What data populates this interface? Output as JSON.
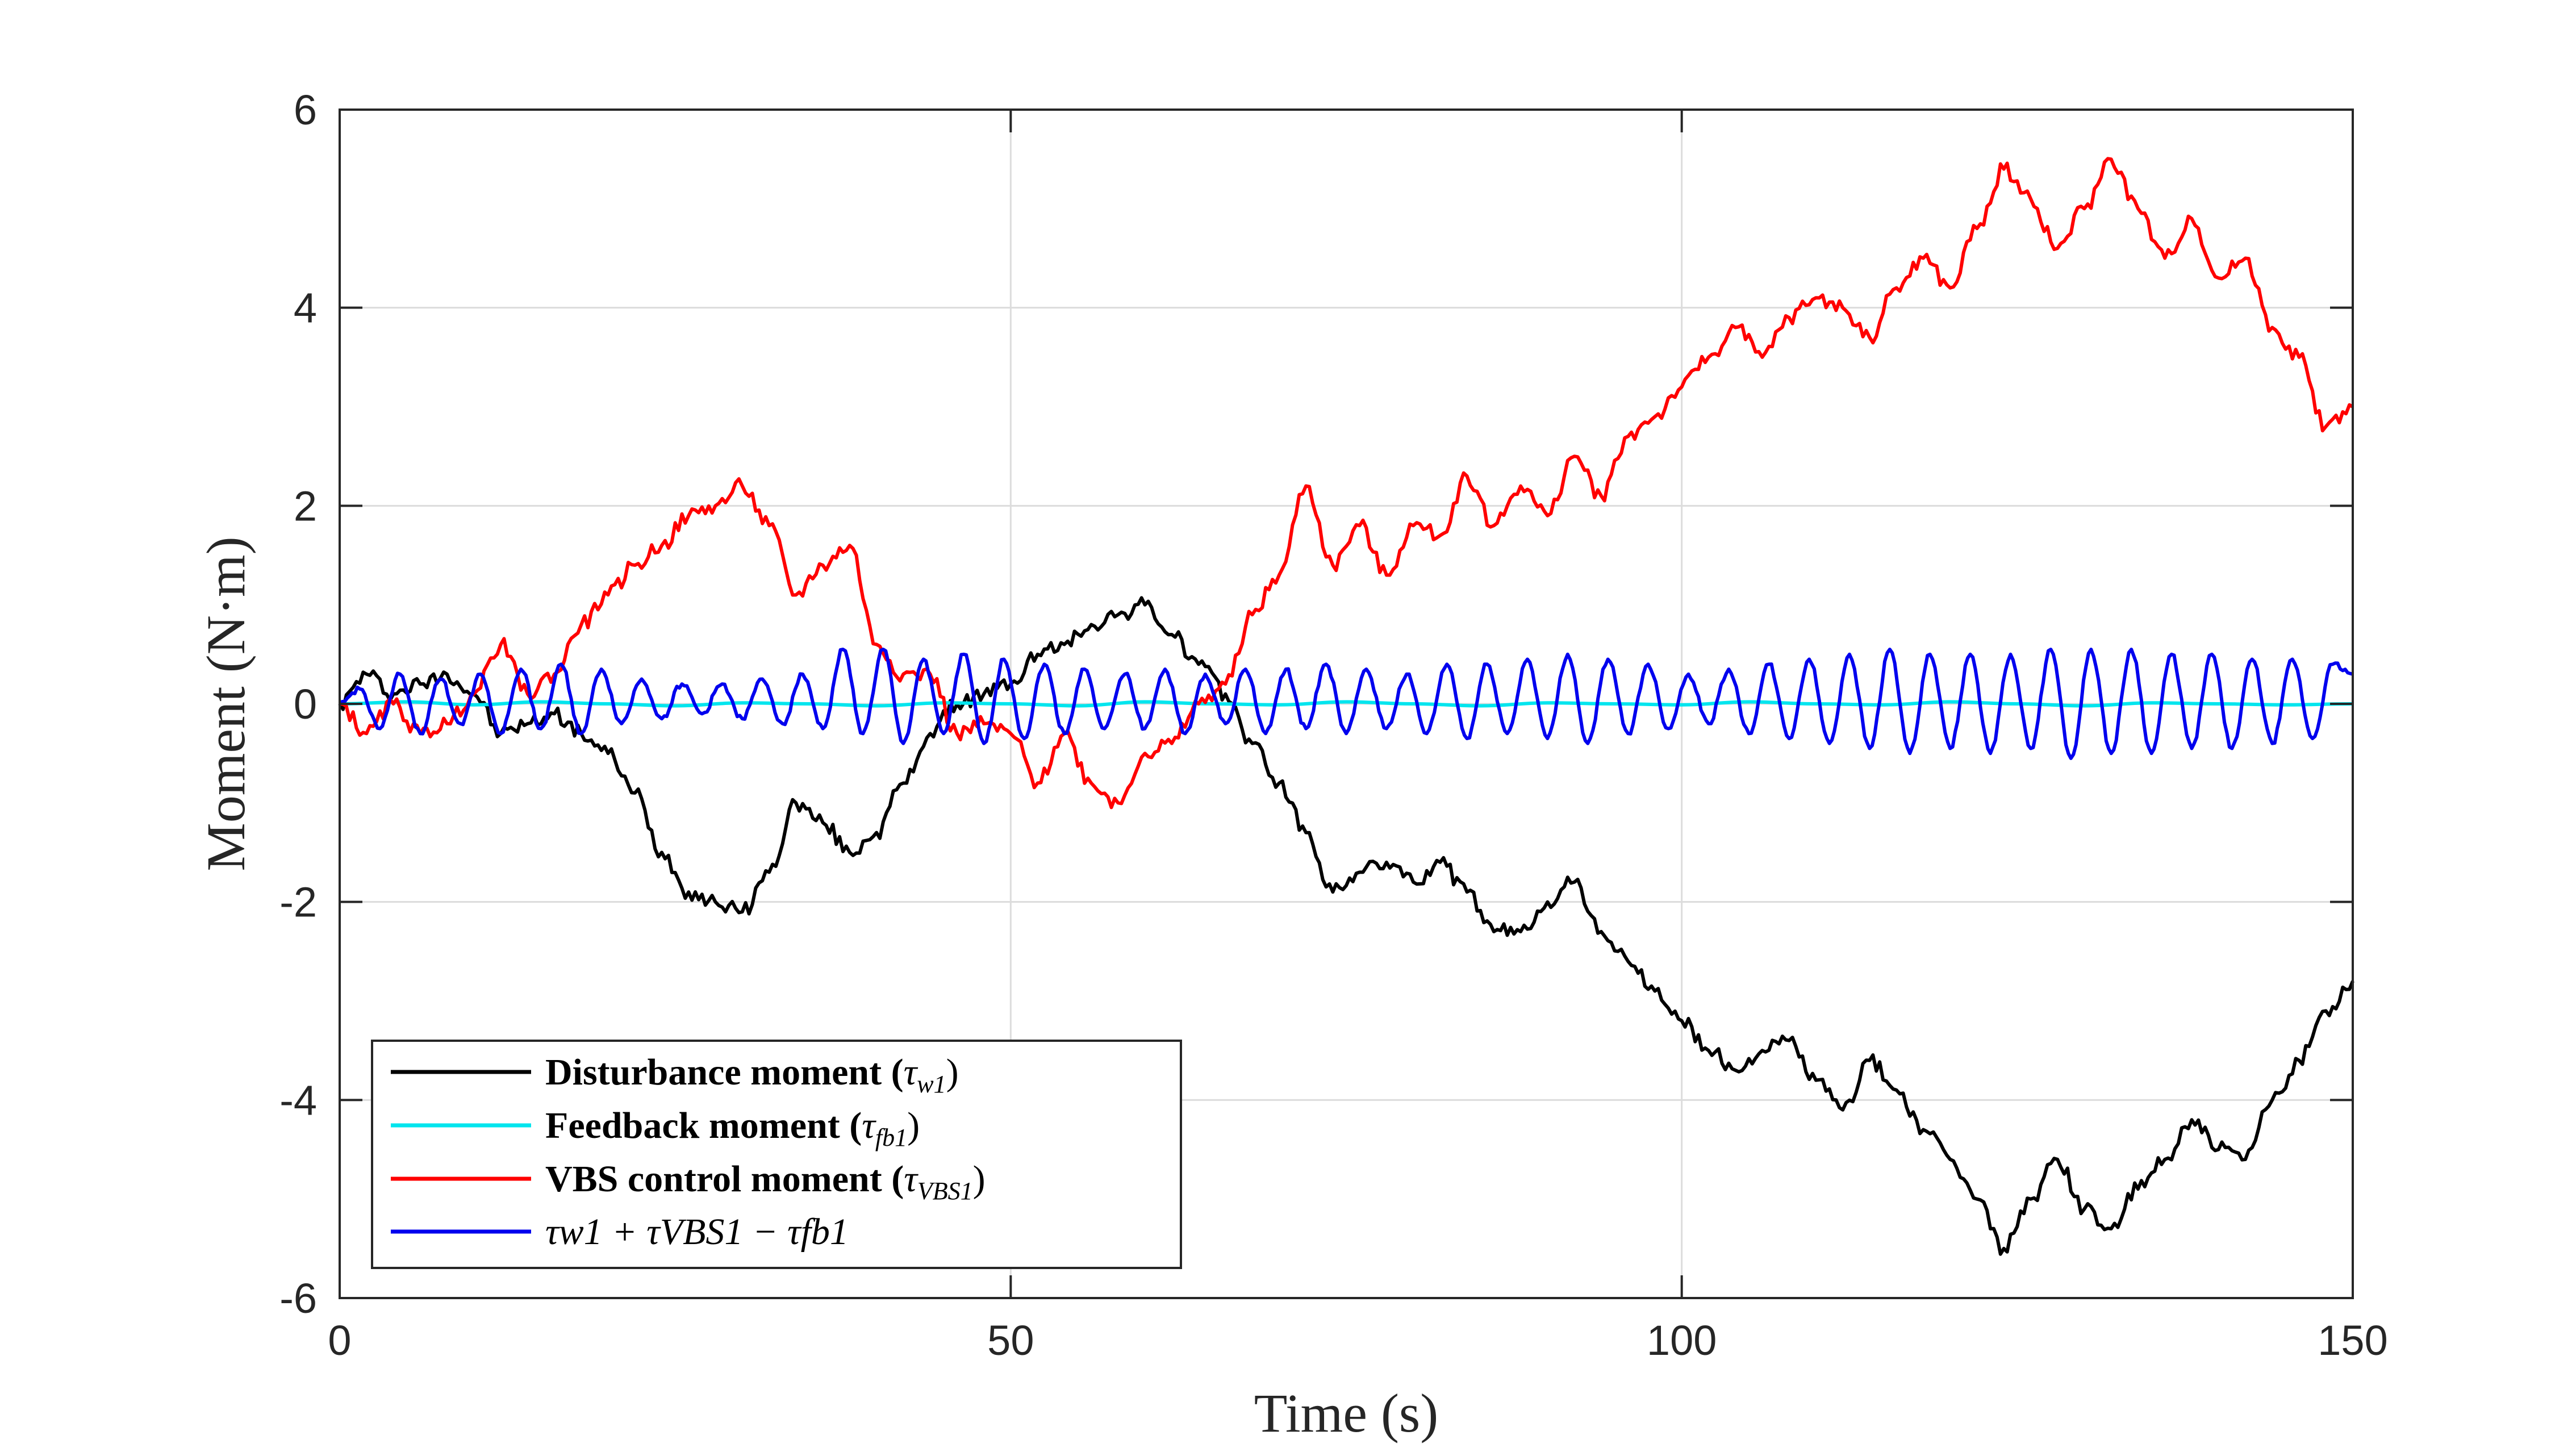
{
  "chart_data": {
    "type": "line",
    "title": "",
    "xlabel": "Time (s)",
    "ylabel": "Moment (N·m)",
    "xlim": [
      0,
      150
    ],
    "ylim": [
      -6,
      6
    ],
    "xticks": [
      0,
      50,
      100,
      150
    ],
    "xtick_labels": [
      "0",
      "50",
      "100",
      "150"
    ],
    "yticks": [
      -6,
      -4,
      -2,
      0,
      2,
      4,
      6
    ],
    "ytick_labels": [
      "-6",
      "-4",
      "-2",
      "0",
      "2",
      "4",
      "6"
    ],
    "grid": true,
    "legend_position": "bottom-left",
    "legend": [
      {
        "bold_label": "Disturbance moment (",
        "math_symbol": "τ",
        "math_sub": "w1",
        "close": ")",
        "color": "#000000"
      },
      {
        "bold_label": "Feedback moment (",
        "math_symbol": "τ",
        "math_sub": "fb1",
        "close": ")",
        "color": "#00e5ee"
      },
      {
        "bold_label": "VBS control moment (",
        "math_symbol": "τ",
        "math_sub": "VBS1",
        "close": ")",
        "color": "#ff0000"
      },
      {
        "bold_label": "",
        "math_expr": "τw1 + τVBS1 − τfb1",
        "color": "#0000ee"
      }
    ],
    "series": [
      {
        "key": "disturbance",
        "color": "#000000",
        "x": [
          0,
          2,
          4,
          6,
          8,
          10,
          12,
          14,
          16,
          18,
          20,
          22,
          24,
          26,
          28,
          30,
          32,
          34,
          36,
          38,
          40,
          42,
          44,
          46,
          48,
          50,
          52,
          54,
          56,
          58,
          60,
          62,
          64,
          66,
          68,
          70,
          72,
          74,
          76,
          78,
          80,
          82,
          84,
          86,
          88,
          90,
          92,
          94,
          96,
          98,
          100,
          102,
          104,
          106,
          108,
          110,
          112,
          114,
          116,
          118,
          120,
          122,
          124,
          126,
          128,
          130,
          132,
          134,
          136,
          138,
          140,
          142,
          144,
          146,
          148,
          150
        ],
        "y": [
          0.0,
          0.3,
          0.1,
          0.2,
          0.3,
          0.1,
          -0.3,
          -0.2,
          -0.1,
          -0.3,
          -0.5,
          -0.9,
          -1.5,
          -1.9,
          -2.0,
          -2.1,
          -1.7,
          -1.0,
          -1.2,
          -1.5,
          -1.3,
          -0.8,
          -0.3,
          0.0,
          0.1,
          0.2,
          0.5,
          0.6,
          0.8,
          0.9,
          1.0,
          0.7,
          0.4,
          0.1,
          -0.4,
          -0.8,
          -1.3,
          -1.9,
          -1.7,
          -1.6,
          -1.8,
          -1.6,
          -1.9,
          -2.3,
          -2.3,
          -2.0,
          -1.8,
          -2.3,
          -2.6,
          -2.9,
          -3.2,
          -3.5,
          -3.7,
          -3.5,
          -3.4,
          -3.8,
          -4.1,
          -3.6,
          -3.9,
          -4.3,
          -4.6,
          -5.0,
          -5.5,
          -5.0,
          -4.6,
          -5.1,
          -5.3,
          -4.9,
          -4.6,
          -4.2,
          -4.5,
          -4.6,
          -4.0,
          -3.6,
          -3.1,
          -2.8
        ]
      },
      {
        "key": "feedback",
        "color": "#00e5ee",
        "x": [
          0,
          5,
          10,
          15,
          20,
          25,
          30,
          35,
          40,
          45,
          50,
          55,
          60,
          65,
          70,
          75,
          80,
          85,
          90,
          95,
          100,
          105,
          110,
          115,
          120,
          125,
          130,
          135,
          140,
          145,
          150
        ],
        "y": [
          0.0,
          0.02,
          -0.01,
          0.02,
          0.0,
          -0.02,
          0.01,
          0.0,
          -0.02,
          0.01,
          0.0,
          -0.02,
          0.02,
          0.0,
          -0.01,
          0.02,
          0.0,
          -0.02,
          0.01,
          0.0,
          -0.01,
          0.02,
          0.0,
          -0.01,
          0.02,
          0.0,
          -0.02,
          0.01,
          0.0,
          -0.01,
          0.0
        ]
      },
      {
        "key": "vbs_control",
        "color": "#ff0000",
        "x": [
          0,
          2,
          4,
          6,
          8,
          10,
          12,
          14,
          16,
          18,
          20,
          22,
          24,
          26,
          28,
          30,
          32,
          34,
          36,
          38,
          40,
          42,
          44,
          46,
          48,
          50,
          52,
          54,
          56,
          58,
          60,
          62,
          64,
          66,
          68,
          70,
          72,
          74,
          76,
          78,
          80,
          82,
          84,
          86,
          88,
          90,
          92,
          94,
          96,
          98,
          100,
          102,
          104,
          106,
          108,
          110,
          112,
          114,
          116,
          118,
          120,
          122,
          124,
          126,
          128,
          130,
          132,
          134,
          136,
          138,
          140,
          142,
          144,
          146,
          148,
          150
        ],
        "y": [
          0.0,
          -0.3,
          0.0,
          -0.3,
          -0.2,
          0.1,
          0.6,
          0.1,
          0.3,
          0.8,
          1.1,
          1.4,
          1.6,
          1.9,
          2.0,
          2.2,
          1.8,
          1.1,
          1.4,
          1.6,
          0.6,
          0.3,
          0.3,
          -0.3,
          -0.2,
          -0.3,
          -0.8,
          -0.3,
          -0.8,
          -1.0,
          -0.5,
          -0.4,
          0.0,
          0.2,
          0.9,
          1.3,
          2.2,
          1.4,
          1.8,
          1.3,
          1.8,
          1.7,
          2.3,
          1.8,
          2.2,
          1.9,
          2.5,
          2.1,
          2.7,
          2.9,
          3.2,
          3.5,
          3.8,
          3.5,
          3.9,
          4.1,
          4.0,
          3.7,
          4.2,
          4.5,
          4.2,
          4.8,
          5.4,
          5.1,
          4.6,
          5.0,
          5.5,
          5.0,
          4.5,
          4.9,
          4.3,
          4.5,
          3.8,
          3.5,
          2.8,
          3.0
        ]
      },
      {
        "key": "sum",
        "color": "#0000ee",
        "x": [
          0,
          1.5,
          3,
          4.5,
          6,
          7.5,
          9,
          10.5,
          12,
          13.5,
          15,
          16.5,
          18,
          19.5,
          21,
          22.5,
          24,
          25.5,
          27,
          28.5,
          30,
          31.5,
          33,
          34.5,
          36,
          37.5,
          39,
          40.5,
          42,
          43.5,
          45,
          46.5,
          48,
          49.5,
          51,
          52.5,
          54,
          55.5,
          57,
          58.5,
          60,
          61.5,
          63,
          64.5,
          66,
          67.5,
          69,
          70.5,
          72,
          73.5,
          75,
          76.5,
          78,
          79.5,
          81,
          82.5,
          84,
          85.5,
          87,
          88.5,
          90,
          91.5,
          93,
          94.5,
          96,
          97.5,
          99,
          100.5,
          102,
          103.5,
          105,
          106.5,
          108,
          109.5,
          111,
          112.5,
          114,
          115.5,
          117,
          118.5,
          120,
          121.5,
          123,
          124.5,
          126,
          127.5,
          129,
          130.5,
          132,
          133.5,
          135,
          136.5,
          138,
          139.5,
          141,
          142.5,
          144,
          145.5,
          147,
          148.5,
          150
        ],
        "y": [
          0.0,
          0.15,
          -0.25,
          0.3,
          -0.3,
          0.25,
          -0.2,
          0.3,
          -0.3,
          0.35,
          -0.25,
          0.4,
          -0.3,
          0.35,
          -0.2,
          0.25,
          -0.15,
          0.2,
          -0.1,
          0.2,
          -0.15,
          0.25,
          -0.2,
          0.3,
          -0.25,
          0.55,
          -0.3,
          0.55,
          -0.4,
          0.45,
          -0.3,
          0.5,
          -0.4,
          0.45,
          -0.35,
          0.4,
          -0.3,
          0.35,
          -0.25,
          0.3,
          -0.25,
          0.35,
          -0.3,
          0.3,
          -0.2,
          0.35,
          -0.3,
          0.35,
          -0.25,
          0.4,
          -0.3,
          0.35,
          -0.25,
          0.3,
          -0.3,
          0.4,
          -0.35,
          0.4,
          -0.3,
          0.45,
          -0.35,
          0.5,
          -0.4,
          0.45,
          -0.3,
          0.4,
          -0.25,
          0.3,
          -0.2,
          0.35,
          -0.3,
          0.4,
          -0.35,
          0.45,
          -0.4,
          0.5,
          -0.45,
          0.55,
          -0.5,
          0.5,
          -0.45,
          0.5,
          -0.5,
          0.5,
          -0.45,
          0.55,
          -0.55,
          0.55,
          -0.5,
          0.55,
          -0.5,
          0.5,
          -0.45,
          0.5,
          -0.45,
          0.45,
          -0.4,
          0.45,
          -0.35,
          0.4,
          0.3
        ]
      }
    ]
  }
}
